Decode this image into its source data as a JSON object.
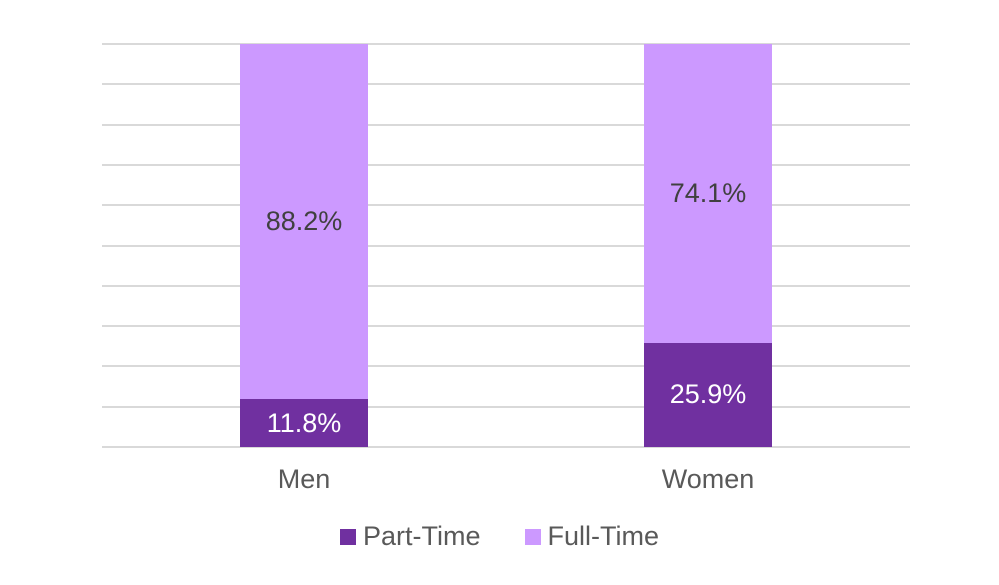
{
  "chart_data": {
    "type": "bar",
    "subtype": "stacked-column",
    "title": "",
    "xlabel": "",
    "ylabel": "",
    "categories": [
      "Men",
      "Women"
    ],
    "series": [
      {
        "name": "Part-Time",
        "color": "#7030A0",
        "values": [
          11.8,
          25.9
        ],
        "labels": [
          "11.8%",
          "25.9%"
        ],
        "label_color": "#FFFFFF"
      },
      {
        "name": "Full-Time",
        "color": "#CC99FF",
        "values": [
          88.2,
          74.1
        ],
        "labels": [
          "88.2%",
          "74.1%"
        ],
        "label_color": "#404040"
      }
    ],
    "ylim": [
      0,
      100
    ],
    "gridlines": {
      "visible": true,
      "interval": 10,
      "color": "#D9D9D9"
    },
    "legend": {
      "position": "bottom",
      "entries": [
        "Part-Time",
        "Full-Time"
      ]
    }
  },
  "colors": {
    "background": "#FFFFFF",
    "axis_text": "#595959",
    "gridline": "#D9D9D9"
  }
}
